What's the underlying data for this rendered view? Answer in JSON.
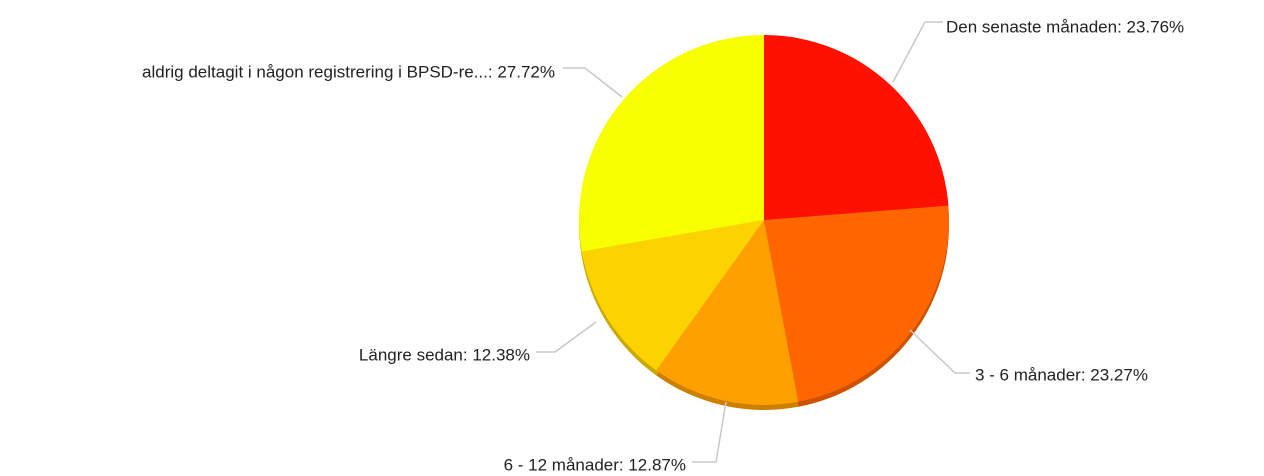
{
  "chart_data": {
    "type": "pie",
    "values": [
      23.76,
      23.27,
      12.87,
      12.38,
      27.72
    ],
    "value_labels": [
      "Den senaste månaden: 23.76%",
      "3 - 6 månader: 23.27%",
      "6 - 12 månader: 12.87%",
      "Längre sedan: 12.38%",
      "aldrig deltagit i någon registrering i BPSD-re...: 27.72%"
    ],
    "colors": [
      "#ff1100",
      "#ff6600",
      "#ff9f00",
      "#fcd200",
      "#f7ff00"
    ]
  }
}
